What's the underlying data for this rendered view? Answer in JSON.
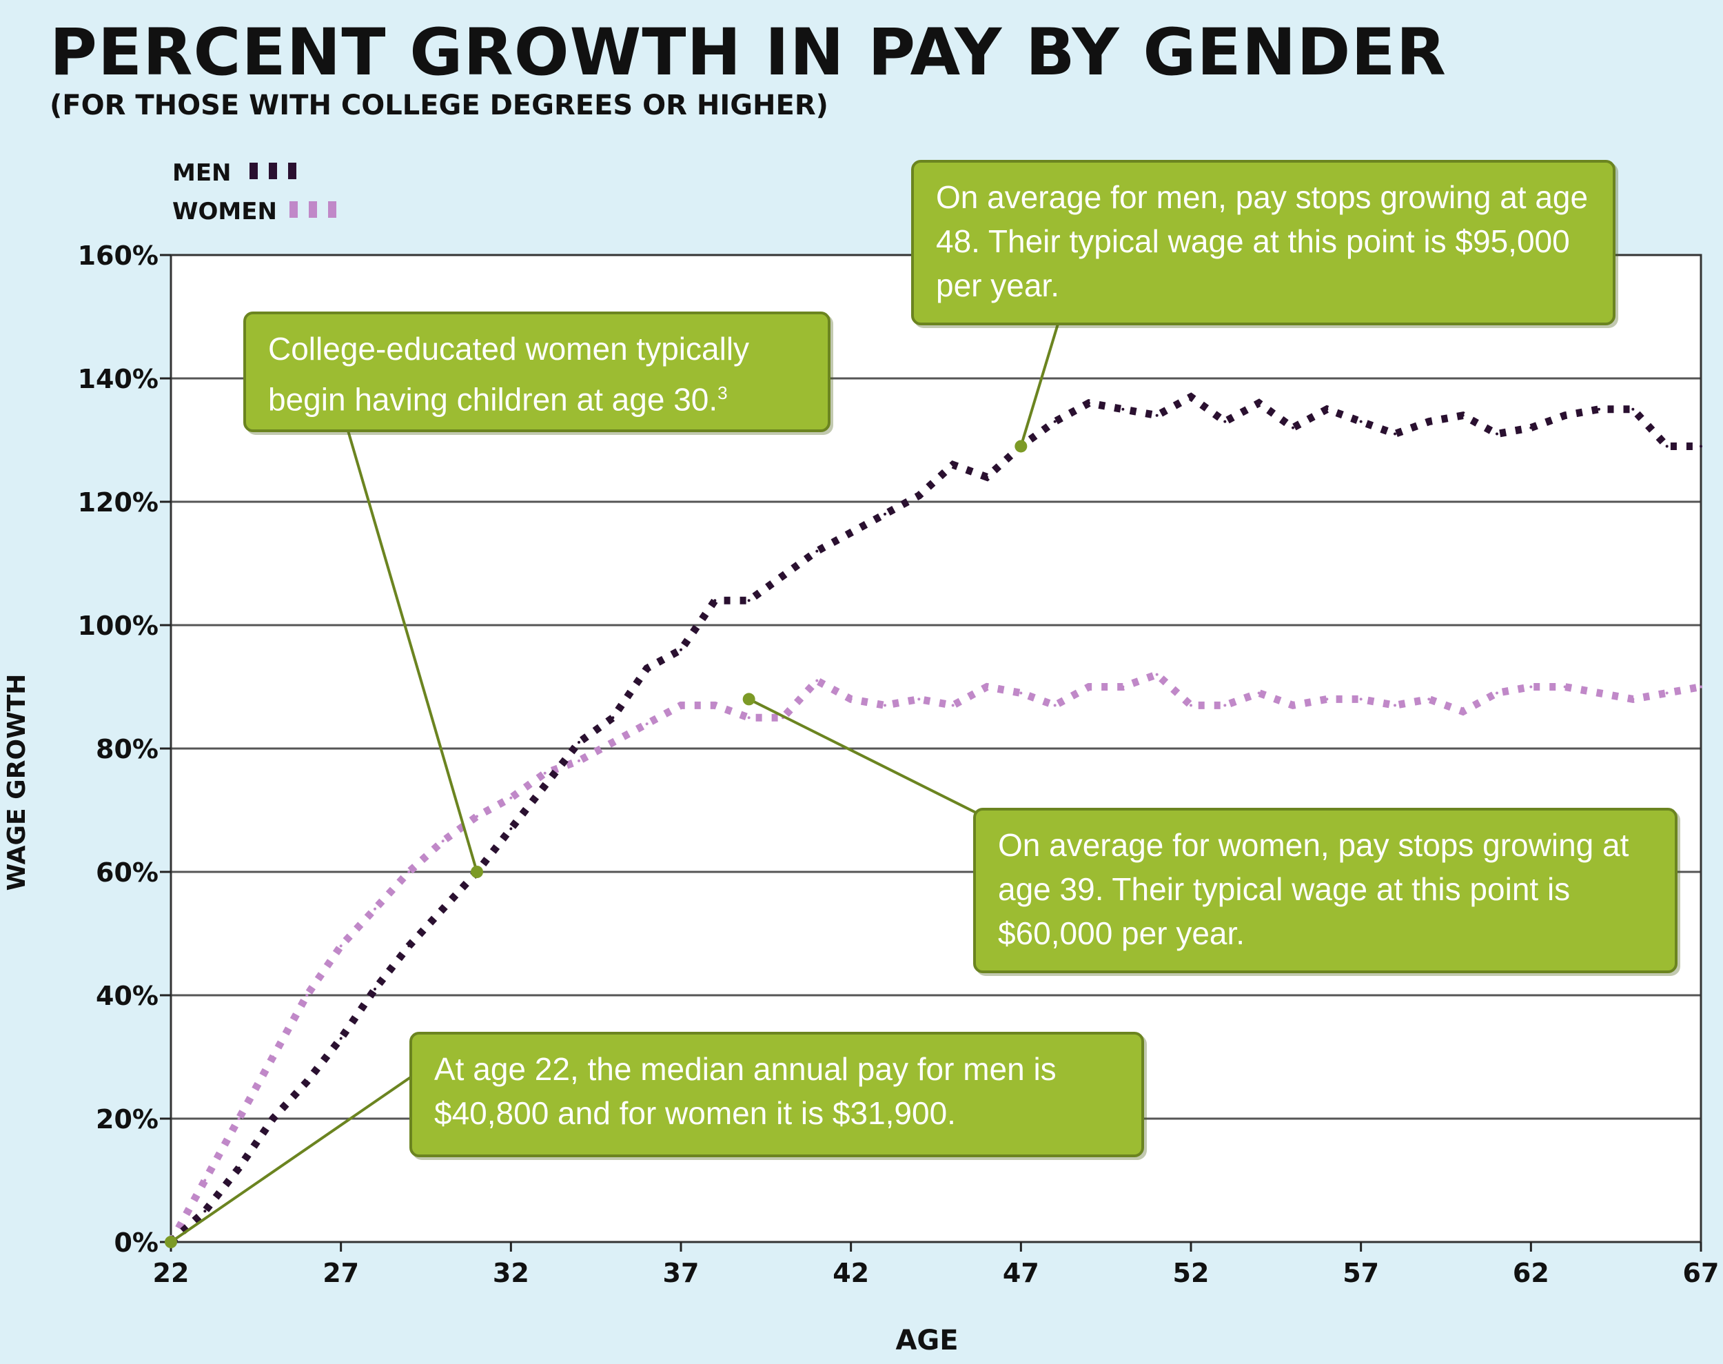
{
  "title": "PERCENT GROWTH IN PAY BY GENDER",
  "subtitle": "(FOR THOSE WITH COLLEGE DEGREES OR HIGHER)",
  "colors": {
    "men": "#2a1030",
    "women": "#c088c8",
    "callout_fill": "#9cbc32",
    "callout_border": "#6b8420",
    "background": "#dcf0f7",
    "plot_bg": "#ffffff",
    "grid": "#555555"
  },
  "callouts": {
    "men_peak": {
      "text": "On average for men, pay stops growing at age 48. Their typical wage at this point is $95,000 per year.",
      "anchor": {
        "x": 47,
        "y": 129
      }
    },
    "women_children": {
      "text": "College-educated women typically begin having children at age 30.",
      "footnote": "3",
      "anchor": {
        "x": 31,
        "y": 60
      }
    },
    "women_peak": {
      "text": "On average for women, pay stops growing at age 39. Their typical wage at this point is $60,000 per year.",
      "anchor": {
        "x": 39,
        "y": 88
      }
    },
    "start_pay": {
      "text": "At age 22, the median annual pay for men is $40,800 and for women it is $31,900.",
      "anchor": {
        "x": 22,
        "y": 0
      }
    }
  },
  "chart_data": {
    "type": "line",
    "xlabel": "AGE",
    "ylabel": "WAGE GROWTH",
    "xlim": [
      22,
      67
    ],
    "ylim": [
      0,
      160
    ],
    "xticks": [
      "22",
      "27",
      "32",
      "37",
      "42",
      "47",
      "52",
      "57",
      "62",
      "67"
    ],
    "yticks": [
      "0%",
      "20%",
      "40%",
      "60%",
      "80%",
      "100%",
      "120%",
      "140%",
      "160%"
    ],
    "grid": "horizontal",
    "legend": "top-left",
    "x": [
      22,
      23,
      24,
      25,
      26,
      27,
      28,
      29,
      30,
      31,
      32,
      33,
      34,
      35,
      36,
      37,
      38,
      39,
      40,
      41,
      42,
      43,
      44,
      45,
      46,
      47,
      48,
      49,
      50,
      51,
      52,
      53,
      54,
      55,
      56,
      57,
      58,
      59,
      60,
      61,
      62,
      63,
      64,
      65,
      66,
      67
    ],
    "series": [
      {
        "name": "MEN",
        "values": [
          0,
          5,
          12,
          20,
          26,
          33,
          41,
          48,
          54,
          60,
          67,
          74,
          81,
          85,
          93,
          96,
          104,
          104,
          108,
          112,
          115,
          118,
          121,
          126,
          124,
          129,
          133,
          136,
          135,
          134,
          137,
          133,
          136,
          132,
          135,
          133,
          131,
          133,
          134,
          131,
          132,
          134,
          135,
          135,
          129,
          129
        ]
      },
      {
        "name": "WOMEN",
        "values": [
          0,
          10,
          20,
          30,
          40,
          48,
          54,
          60,
          65,
          69,
          72,
          76,
          78,
          81,
          84,
          87,
          87,
          85,
          85,
          91,
          88,
          87,
          88,
          87,
          90,
          89,
          87,
          90,
          90,
          92,
          87,
          87,
          89,
          87,
          88,
          88,
          87,
          88,
          86,
          89,
          90,
          90,
          89,
          88,
          89,
          90
        ]
      }
    ]
  }
}
